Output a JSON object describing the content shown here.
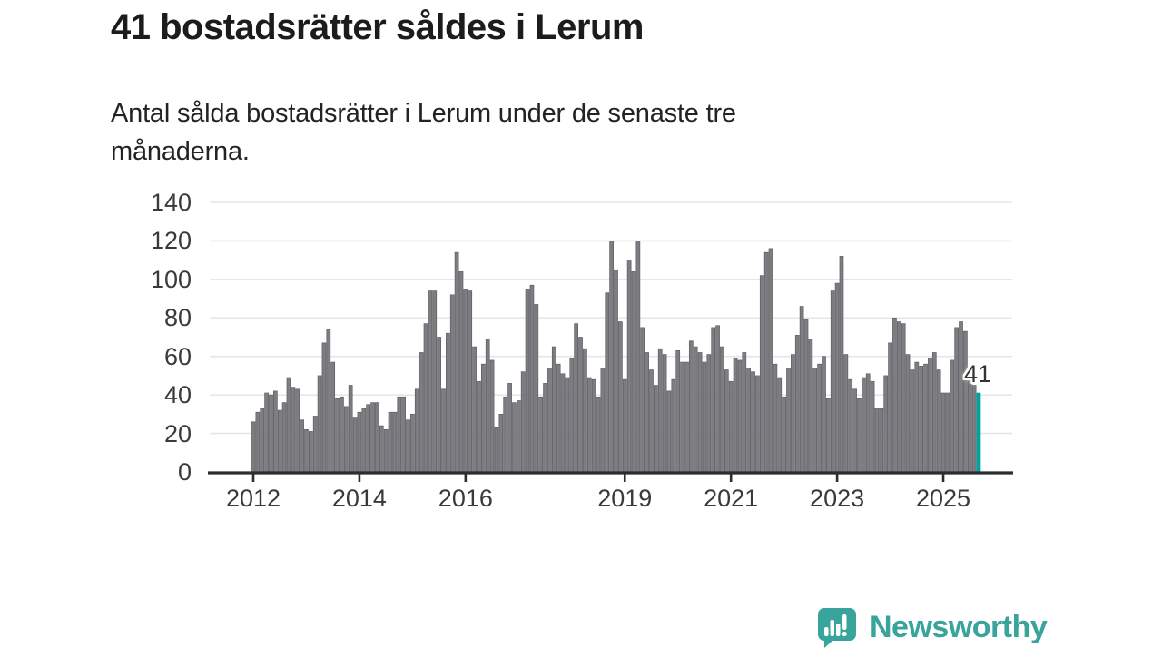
{
  "header": {
    "title": "41 bostadsrätter såldes i Lerum",
    "subtitle": "Antal sålda bostadsrätter i Lerum under de senaste tre\nmånaderna."
  },
  "chart_data": {
    "type": "bar",
    "title": "41 bostadsrätter såldes i Lerum",
    "subtitle": "Antal sålda bostadsrätter i Lerum under de senaste tre månaderna.",
    "frequency": "monthly",
    "x_start": "2012-01",
    "x_end": "2025-09",
    "x_tick_years": [
      2012,
      2014,
      2016,
      2019,
      2021,
      2023,
      2025
    ],
    "x_tick_labels": [
      "2012",
      "2014",
      "2016",
      "2019",
      "2021",
      "2023",
      "2025"
    ],
    "y_ticks": [
      0,
      20,
      40,
      60,
      80,
      100,
      120,
      140
    ],
    "ylim": [
      0,
      147
    ],
    "grid": "horizontal",
    "legend": "none",
    "series": [
      {
        "name": "Antal sålda bostadsrätter",
        "values": [
          26,
          31,
          33,
          41,
          40,
          42,
          32,
          36,
          49,
          44,
          43,
          27,
          22,
          21,
          29,
          50,
          67,
          74,
          57,
          38,
          39,
          34,
          45,
          28,
          31,
          33,
          35,
          36,
          36,
          24,
          22,
          31,
          31,
          39,
          39,
          27,
          30,
          43,
          62,
          77,
          94,
          94,
          70,
          43,
          72,
          92,
          114,
          104,
          95,
          94,
          65,
          47,
          56,
          69,
          58,
          23,
          30,
          39,
          46,
          36,
          37,
          52,
          95,
          97,
          87,
          39,
          46,
          54,
          65,
          56,
          51,
          49,
          59,
          77,
          70,
          64,
          49,
          48,
          39,
          54,
          93,
          120,
          105,
          78,
          48,
          110,
          104,
          120,
          75,
          62,
          53,
          45,
          64,
          61,
          42,
          48,
          63,
          57,
          57,
          68,
          65,
          62,
          57,
          61,
          75,
          76,
          65,
          53,
          47,
          59,
          58,
          62,
          54,
          52,
          50,
          102,
          114,
          116,
          56,
          49,
          39,
          54,
          61,
          71,
          86,
          79,
          69,
          54,
          56,
          60,
          38,
          94,
          98,
          112,
          61,
          48,
          43,
          38,
          49,
          51,
          47,
          33,
          33,
          50,
          67,
          80,
          78,
          77,
          61,
          53,
          57,
          55,
          56,
          59,
          62,
          53,
          41,
          41,
          58,
          75,
          78,
          73,
          50,
          45,
          41
        ]
      }
    ],
    "highlight": {
      "index": 164,
      "value": 41,
      "label": "41"
    },
    "colors": {
      "bar": "#7d7d82",
      "bar_edge": "#5e5e63",
      "highlight": "#00a49e",
      "grid": "#e6e6e6",
      "axis": "#2d2d2d",
      "tick_text": "#3a3a3a",
      "title_text": "#1c1c1c"
    }
  },
  "footer": {
    "brand": "Newsworthy",
    "brand_color": "#38a49c",
    "logo_icon": "speech-bubble-bar-chart"
  }
}
